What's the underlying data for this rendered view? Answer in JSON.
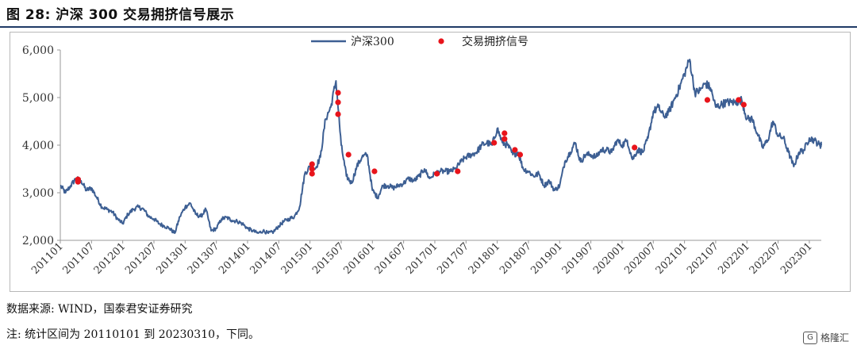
{
  "figure": {
    "title": "图 28:  沪深 300 交易拥挤信号展示",
    "source": "数据来源:  WIND，国泰君安证券研究",
    "note": "注:  统计区间为 20110101 到 20230310，下同。",
    "watermark": "格隆汇"
  },
  "chart_data": {
    "type": "line",
    "title": "",
    "xlabel": "",
    "ylabel": "",
    "ylim": [
      2000,
      6000
    ],
    "yticks": [
      "2,000",
      "3,000",
      "4,000",
      "5,000",
      "6,000"
    ],
    "xticks": [
      "201101",
      "201107",
      "201201",
      "201207",
      "201301",
      "201307",
      "201401",
      "201407",
      "201501",
      "201507",
      "201601",
      "201607",
      "201701",
      "201707",
      "201801",
      "201807",
      "201901",
      "201907",
      "202001",
      "202007",
      "202101",
      "202107",
      "202201",
      "202207",
      "202301"
    ],
    "legend_position": "top-center",
    "colors": {
      "line": "#3d5f93",
      "signal": "#e8141b"
    },
    "series": [
      {
        "name": "沪深300",
        "type": "line",
        "points": [
          [
            "2011-01",
            3150
          ],
          [
            "2011-02",
            3000
          ],
          [
            "2011-03",
            3150
          ],
          [
            "2011-04",
            3300
          ],
          [
            "2011-05",
            3250
          ],
          [
            "2011-06",
            3050
          ],
          [
            "2011-07",
            3100
          ],
          [
            "2011-08",
            2900
          ],
          [
            "2011-09",
            2700
          ],
          [
            "2011-10",
            2650
          ],
          [
            "2011-11",
            2600
          ],
          [
            "2011-12",
            2450
          ],
          [
            "2012-01",
            2350
          ],
          [
            "2012-02",
            2550
          ],
          [
            "2012-03",
            2650
          ],
          [
            "2012-04",
            2700
          ],
          [
            "2012-05",
            2650
          ],
          [
            "2012-06",
            2500
          ],
          [
            "2012-07",
            2450
          ],
          [
            "2012-08",
            2350
          ],
          [
            "2012-09",
            2300
          ],
          [
            "2012-10",
            2250
          ],
          [
            "2012-11",
            2150
          ],
          [
            "2012-12",
            2500
          ],
          [
            "2013-01",
            2700
          ],
          [
            "2013-02",
            2780
          ],
          [
            "2013-03",
            2550
          ],
          [
            "2013-04",
            2500
          ],
          [
            "2013-05",
            2650
          ],
          [
            "2013-06",
            2200
          ],
          [
            "2013-07",
            2250
          ],
          [
            "2013-08",
            2450
          ],
          [
            "2013-09",
            2480
          ],
          [
            "2013-10",
            2420
          ],
          [
            "2013-11",
            2400
          ],
          [
            "2013-12",
            2350
          ],
          [
            "2014-01",
            2250
          ],
          [
            "2014-02",
            2200
          ],
          [
            "2014-03",
            2150
          ],
          [
            "2014-04",
            2200
          ],
          [
            "2014-05",
            2150
          ],
          [
            "2014-06",
            2180
          ],
          [
            "2014-07",
            2300
          ],
          [
            "2014-08",
            2400
          ],
          [
            "2014-09",
            2450
          ],
          [
            "2014-10",
            2500
          ],
          [
            "2014-11",
            2700
          ],
          [
            "2014-12",
            3400
          ],
          [
            "2015-01",
            3550
          ],
          [
            "2015-02",
            3500
          ],
          [
            "2015-03",
            3750
          ],
          [
            "2015-04",
            4550
          ],
          [
            "2015-05",
            4800
          ],
          [
            "2015-06",
            5350
          ],
          [
            "2015-07",
            4000
          ],
          [
            "2015-08",
            3350
          ],
          [
            "2015-09",
            3200
          ],
          [
            "2015-10",
            3550
          ],
          [
            "2015-11",
            3750
          ],
          [
            "2015-12",
            3800
          ],
          [
            "2016-01",
            3050
          ],
          [
            "2016-02",
            2900
          ],
          [
            "2016-03",
            3150
          ],
          [
            "2016-04",
            3150
          ],
          [
            "2016-05",
            3100
          ],
          [
            "2016-06",
            3150
          ],
          [
            "2016-07",
            3200
          ],
          [
            "2016-08",
            3300
          ],
          [
            "2016-09",
            3250
          ],
          [
            "2016-10",
            3350
          ],
          [
            "2016-11",
            3500
          ],
          [
            "2016-12",
            3300
          ],
          [
            "2017-01",
            3400
          ],
          [
            "2017-02",
            3450
          ],
          [
            "2017-03",
            3450
          ],
          [
            "2017-04",
            3450
          ],
          [
            "2017-05",
            3500
          ],
          [
            "2017-06",
            3650
          ],
          [
            "2017-07",
            3750
          ],
          [
            "2017-08",
            3800
          ],
          [
            "2017-09",
            3850
          ],
          [
            "2017-10",
            4000
          ],
          [
            "2017-11",
            4050
          ],
          [
            "2017-12",
            4000
          ],
          [
            "2018-01",
            4350
          ],
          [
            "2018-02",
            4050
          ],
          [
            "2018-03",
            4000
          ],
          [
            "2018-04",
            3800
          ],
          [
            "2018-05",
            3850
          ],
          [
            "2018-06",
            3500
          ],
          [
            "2018-07",
            3450
          ],
          [
            "2018-08",
            3350
          ],
          [
            "2018-09",
            3400
          ],
          [
            "2018-10",
            3150
          ],
          [
            "2018-11",
            3250
          ],
          [
            "2018-12",
            3050
          ],
          [
            "2019-01",
            3150
          ],
          [
            "2019-02",
            3650
          ],
          [
            "2019-03",
            3850
          ],
          [
            "2019-04",
            4050
          ],
          [
            "2019-05",
            3650
          ],
          [
            "2019-06",
            3800
          ],
          [
            "2019-07",
            3800
          ],
          [
            "2019-08",
            3750
          ],
          [
            "2019-09",
            3900
          ],
          [
            "2019-10",
            3900
          ],
          [
            "2019-11",
            3850
          ],
          [
            "2019-12",
            4100
          ],
          [
            "2020-01",
            4000
          ],
          [
            "2020-02",
            4100
          ],
          [
            "2020-03",
            3700
          ],
          [
            "2020-04",
            3900
          ],
          [
            "2020-05",
            3850
          ],
          [
            "2020-06",
            4150
          ],
          [
            "2020-07",
            4700
          ],
          [
            "2020-08",
            4800
          ],
          [
            "2020-09",
            4600
          ],
          [
            "2020-10",
            4700
          ],
          [
            "2020-11",
            4950
          ],
          [
            "2020-12",
            5200
          ],
          [
            "2021-01",
            5500
          ],
          [
            "2021-02",
            5800
          ],
          [
            "2021-03",
            5100
          ],
          [
            "2021-04",
            5150
          ],
          [
            "2021-05",
            5300
          ],
          [
            "2021-06",
            5200
          ],
          [
            "2021-07",
            4800
          ],
          [
            "2021-08",
            4850
          ],
          [
            "2021-09",
            4900
          ],
          [
            "2021-10",
            4900
          ],
          [
            "2021-11",
            4900
          ],
          [
            "2021-12",
            4950
          ],
          [
            "2022-01",
            4550
          ],
          [
            "2022-02",
            4550
          ],
          [
            "2022-03",
            4250
          ],
          [
            "2022-04",
            3950
          ],
          [
            "2022-05",
            4100
          ],
          [
            "2022-06",
            4500
          ],
          [
            "2022-07",
            4200
          ],
          [
            "2022-08",
            4150
          ],
          [
            "2022-09",
            3850
          ],
          [
            "2022-10",
            3550
          ],
          [
            "2022-11",
            3850
          ],
          [
            "2022-12",
            3900
          ],
          [
            "2023-01",
            4150
          ],
          [
            "2023-02",
            4100
          ],
          [
            "2023-03",
            4000
          ]
        ]
      },
      {
        "name": "交易拥挤信号",
        "type": "scatter",
        "points": [
          [
            "2011-04",
            3280
          ],
          [
            "2011-04",
            3230
          ],
          [
            "2015-01",
            3600
          ],
          [
            "2015-01",
            3500
          ],
          [
            "2015-01",
            3400
          ],
          [
            "2015-06",
            5100
          ],
          [
            "2015-06",
            4900
          ],
          [
            "2015-06",
            4650
          ],
          [
            "2015-08",
            3800
          ],
          [
            "2016-01",
            3450
          ],
          [
            "2017-01",
            3400
          ],
          [
            "2017-05",
            3450
          ],
          [
            "2017-12",
            4050
          ],
          [
            "2018-02",
            4250
          ],
          [
            "2018-02",
            4130
          ],
          [
            "2018-04",
            3900
          ],
          [
            "2018-05",
            3800
          ],
          [
            "2020-03",
            3950
          ],
          [
            "2021-05",
            4950
          ],
          [
            "2021-11",
            4950
          ],
          [
            "2021-12",
            4850
          ]
        ]
      }
    ]
  }
}
